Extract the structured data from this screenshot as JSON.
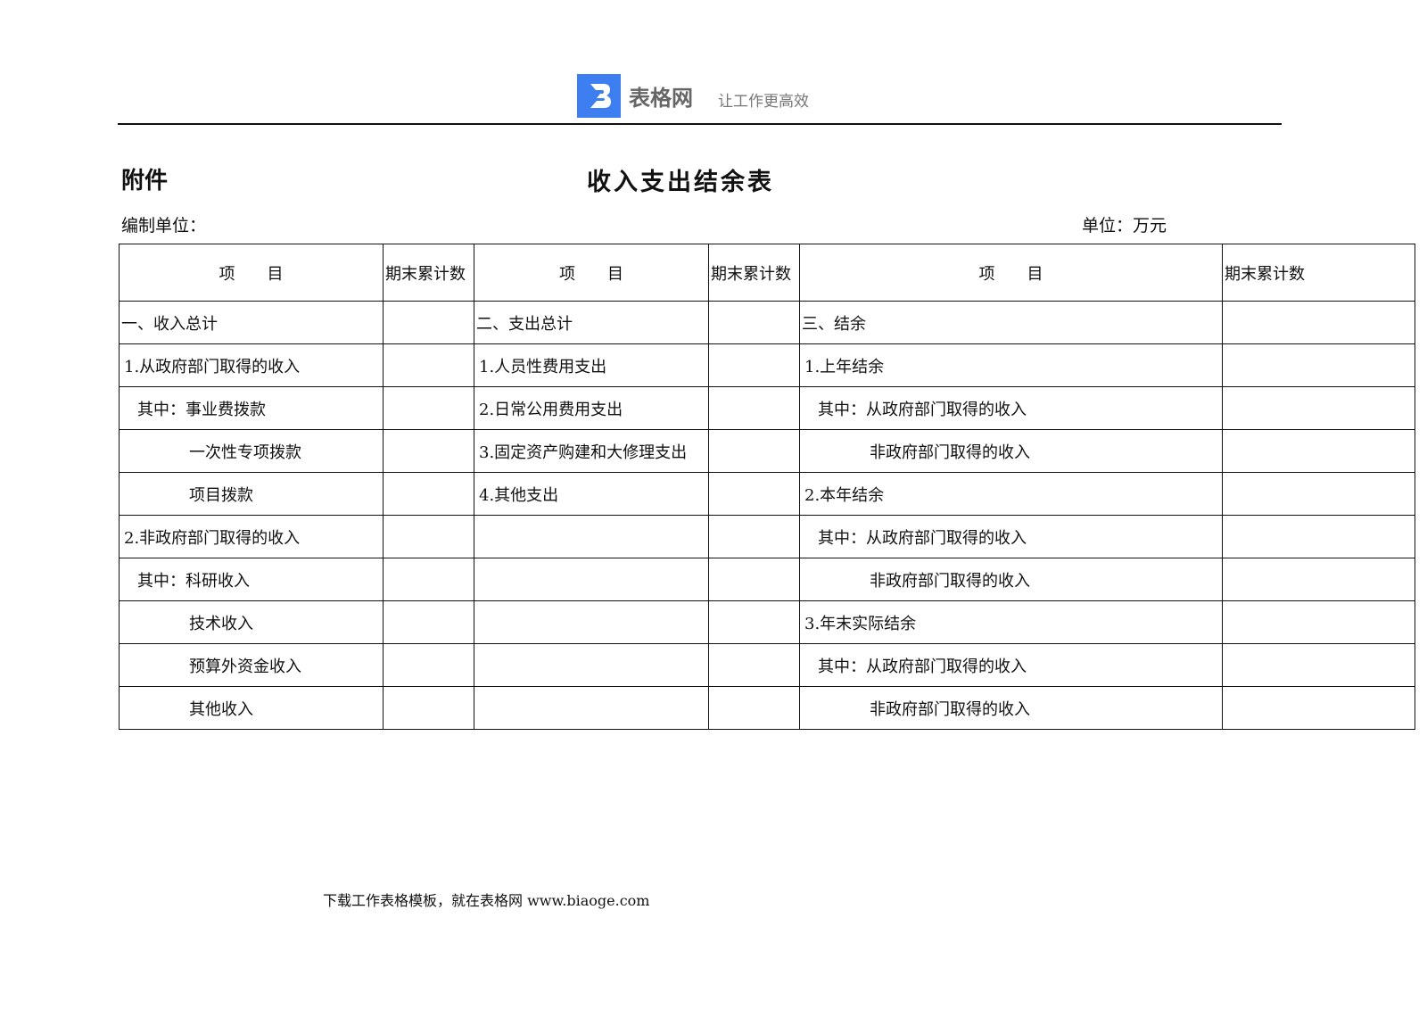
{
  "header": {
    "brand": "表格网",
    "slogan": "让工作更高效",
    "logo_color": "#3d7ff0"
  },
  "doc": {
    "attachment": "附件",
    "title": "收入支出结余表",
    "compiler_label": "编制单位：",
    "unit_label": "单位：万元"
  },
  "table": {
    "headers": [
      "项　　目",
      "期末累计数",
      "项　　目",
      "期末累计数",
      "项　　目",
      "期末累计数"
    ],
    "rows": [
      [
        "一、收入总计",
        "",
        "二、支出总计",
        "",
        "三、结余",
        ""
      ],
      [
        "1.从政府部门取得的收入",
        "",
        "1.人员性费用支出",
        "",
        "1.上年结余",
        ""
      ],
      [
        "其中：事业费拨款",
        "",
        "2.日常公用费用支出",
        "",
        "其中：从政府部门取得的收入",
        ""
      ],
      [
        "一次性专项拨款",
        "",
        "3.固定资产购建和大修理支出",
        "",
        "非政府部门取得的收入",
        ""
      ],
      [
        "项目拨款",
        "",
        "4.其他支出",
        "",
        "2.本年结余",
        ""
      ],
      [
        "2.非政府部门取得的收入",
        "",
        "",
        "",
        "其中：从政府部门取得的收入",
        ""
      ],
      [
        "其中：科研收入",
        "",
        "",
        "",
        "非政府部门取得的收入",
        ""
      ],
      [
        "技术收入",
        "",
        "",
        "",
        "3.年末实际结余",
        ""
      ],
      [
        "预算外资金收入",
        "",
        "",
        "",
        "其中：从政府部门取得的收入",
        ""
      ],
      [
        "其他收入",
        "",
        "",
        "",
        "非政府部门取得的收入",
        ""
      ]
    ]
  },
  "footer": {
    "text": "下载工作表格模板，就在表格网  www.biaoge.com"
  }
}
